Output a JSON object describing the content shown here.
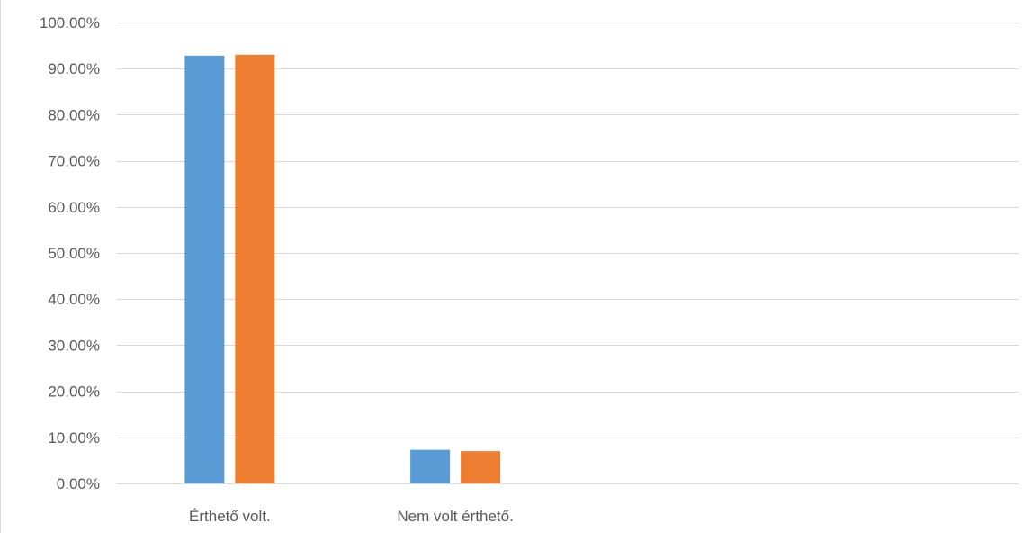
{
  "chart_data": {
    "type": "bar",
    "title": "",
    "xlabel": "",
    "ylabel": "",
    "categories": [
      "Érthető volt.",
      "Nem volt érthető.",
      "",
      ""
    ],
    "series": [
      {
        "color": "#5b9bd5",
        "values": [
          92.8,
          7.3,
          null,
          null
        ]
      },
      {
        "color": "#ed7d31",
        "values": [
          93.0,
          7.0,
          null,
          null
        ]
      }
    ],
    "ylim": [
      0,
      100
    ],
    "y_ticks": [
      0,
      10,
      20,
      30,
      40,
      50,
      60,
      70,
      80,
      90,
      100
    ],
    "y_tick_labels": [
      "0.00%",
      "10.00%",
      "20.00%",
      "30.00%",
      "40.00%",
      "50.00%",
      "60.00%",
      "70.00%",
      "80.00%",
      "90.00%",
      "100.00%"
    ],
    "grid": true,
    "legend": "none",
    "gridline_color": "#d9d9d9"
  }
}
